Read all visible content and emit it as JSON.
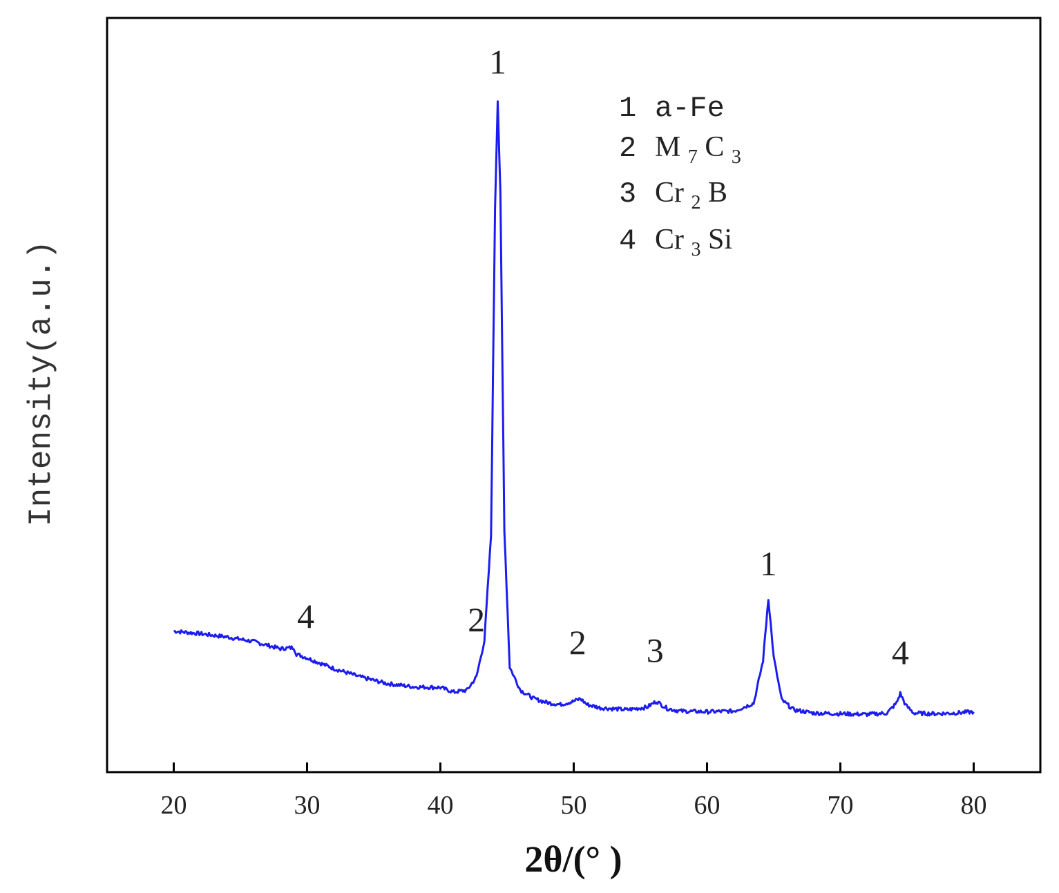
{
  "chart_data": {
    "type": "line",
    "xlabel": "2θ/(° )",
    "ylabel": "Intensity(a.u.)",
    "xlim": [
      15,
      85
    ],
    "ylim": [
      0,
      1
    ],
    "x_ticks": [
      20,
      30,
      40,
      50,
      60,
      70,
      80
    ],
    "y_ticks": [],
    "grid": false,
    "line_color": "#1c1cf0",
    "series": [
      {
        "points": [
          [
            20.0,
            0.175
          ],
          [
            22.0,
            0.171
          ],
          [
            24.0,
            0.166
          ],
          [
            26.0,
            0.159
          ],
          [
            28.0,
            0.148
          ],
          [
            29.0,
            0.15
          ],
          [
            29.2,
            0.14
          ],
          [
            30.0,
            0.134
          ],
          [
            32.0,
            0.118
          ],
          [
            34.0,
            0.105
          ],
          [
            36.0,
            0.095
          ],
          [
            38.0,
            0.09
          ],
          [
            40.0,
            0.089
          ],
          [
            41.0,
            0.082
          ],
          [
            42.0,
            0.085
          ],
          [
            42.7,
            0.105
          ],
          [
            43.3,
            0.16
          ],
          [
            43.8,
            0.32
          ],
          [
            44.1,
            0.82
          ],
          [
            44.3,
            0.985
          ],
          [
            44.5,
            0.84
          ],
          [
            44.8,
            0.33
          ],
          [
            45.2,
            0.12
          ],
          [
            46.0,
            0.085
          ],
          [
            47.0,
            0.072
          ],
          [
            48.0,
            0.066
          ],
          [
            49.0,
            0.063
          ],
          [
            50.0,
            0.068
          ],
          [
            50.5,
            0.072
          ],
          [
            51.0,
            0.063
          ],
          [
            52.0,
            0.058
          ],
          [
            54.0,
            0.055
          ],
          [
            55.5,
            0.059
          ],
          [
            56.2,
            0.068
          ],
          [
            57.0,
            0.057
          ],
          [
            58.0,
            0.053
          ],
          [
            60.0,
            0.052
          ],
          [
            62.0,
            0.053
          ],
          [
            63.5,
            0.065
          ],
          [
            64.2,
            0.13
          ],
          [
            64.6,
            0.225
          ],
          [
            65.0,
            0.135
          ],
          [
            65.6,
            0.07
          ],
          [
            66.5,
            0.055
          ],
          [
            68.0,
            0.05
          ],
          [
            70.0,
            0.049
          ],
          [
            72.0,
            0.048
          ],
          [
            73.5,
            0.05
          ],
          [
            74.2,
            0.065
          ],
          [
            74.5,
            0.08
          ],
          [
            74.9,
            0.062
          ],
          [
            75.5,
            0.05
          ],
          [
            77.0,
            0.049
          ],
          [
            78.5,
            0.05
          ],
          [
            80.0,
            0.052
          ]
        ]
      }
    ],
    "peak_annotations": [
      {
        "label": "4",
        "x": 29.9,
        "y": 0.18
      },
      {
        "label": "2",
        "x": 42.7,
        "y": 0.175
      },
      {
        "label": "1",
        "x": 44.3,
        "y": 1.025
      },
      {
        "label": "2",
        "x": 50.3,
        "y": 0.14
      },
      {
        "label": "3",
        "x": 56.1,
        "y": 0.128
      },
      {
        "label": "1",
        "x": 64.6,
        "y": 0.26
      },
      {
        "label": "4",
        "x": 74.5,
        "y": 0.125
      }
    ],
    "legend": {
      "placement": "top-right",
      "entries": [
        {
          "num": "1",
          "name": "a-Fe"
        },
        {
          "num": "2",
          "name_main": "M",
          "sub1": "7",
          "name_mid": "C",
          "sub2": "3"
        },
        {
          "num": "3",
          "name_main": "Cr",
          "sub1": "2",
          "name_mid": "B"
        },
        {
          "num": "4",
          "name_main": "Cr",
          "sub1": "3",
          "name_mid": "Si"
        }
      ]
    }
  }
}
